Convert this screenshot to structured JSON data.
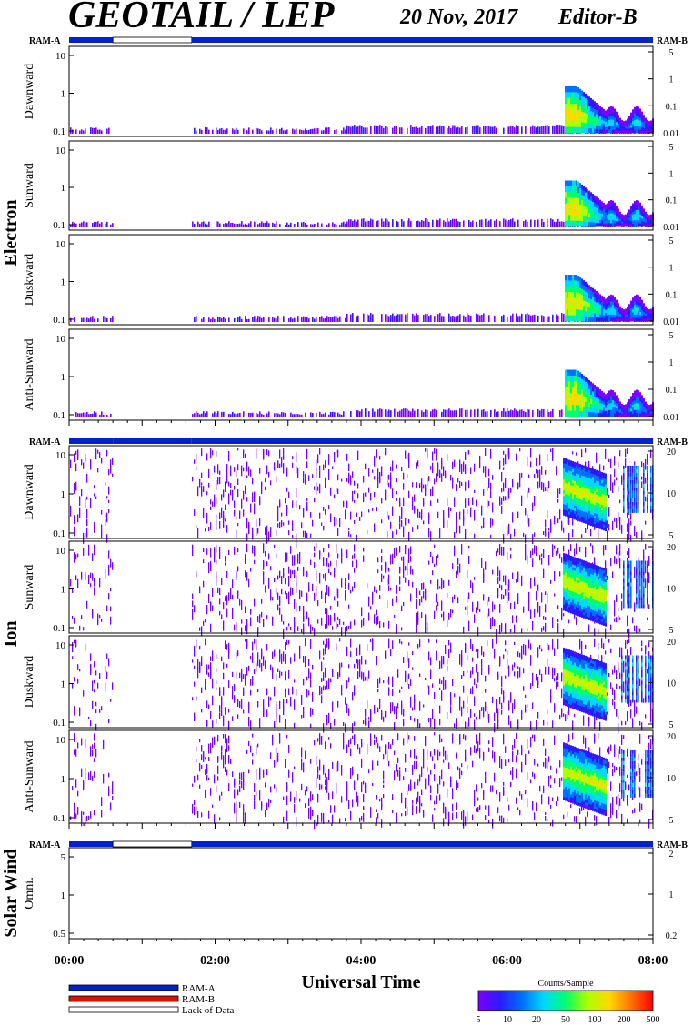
{
  "header": {
    "title": "GEOTAIL / LEP",
    "date": "20 Nov, 2017",
    "editor": "Editor-B"
  },
  "chart_data": {
    "type": "heatmap",
    "xlabel": "Universal Time",
    "x_ticks": [
      "00:00",
      "02:00",
      "04:00",
      "06:00",
      "08:00"
    ],
    "x_range_hours": [
      0,
      8
    ],
    "ram_a_label": "RAM-A",
    "ram_b_label": "RAM-B",
    "ram_bars": {
      "electron": [
        {
          "from": 0.0,
          "to": 0.6,
          "status": "RAM-A"
        },
        {
          "from": 0.6,
          "to": 1.68,
          "status": "Lack of Data"
        },
        {
          "from": 1.68,
          "to": 8.0,
          "status": "RAM-A"
        }
      ],
      "ion": [
        {
          "from": 0.0,
          "to": 0.6,
          "status": "RAM-A"
        },
        {
          "from": 0.6,
          "to": 1.68,
          "status": "RAM-A"
        },
        {
          "from": 1.68,
          "to": 8.0,
          "status": "RAM-A"
        }
      ],
      "solar_wind": [
        {
          "from": 0.0,
          "to": 0.6,
          "status": "RAM-A"
        },
        {
          "from": 0.6,
          "to": 1.68,
          "status": "Lack of Data"
        },
        {
          "from": 1.68,
          "to": 8.0,
          "status": "RAM-A"
        }
      ]
    },
    "groups": [
      {
        "name": "Electron",
        "panels": [
          {
            "label": "Dawnward",
            "left_ticks": [
              "10",
              "1",
              "0.1"
            ],
            "right_ticks": [
              "5",
              "1",
              "0.1",
              "0.01"
            ]
          },
          {
            "label": "Sunward",
            "left_ticks": [
              "10",
              "1",
              "0.1"
            ],
            "right_ticks": [
              "5",
              "1",
              "0.1",
              "0.01"
            ]
          },
          {
            "label": "Duskward",
            "left_ticks": [
              "10",
              "1",
              "0.1"
            ],
            "right_ticks": [
              "5",
              "1",
              "0.1",
              "0.01"
            ]
          },
          {
            "label": "Anti-Sunward",
            "left_ticks": [
              "10",
              "1",
              "0.1"
            ],
            "right_ticks": [
              "5",
              "1",
              "0.1",
              "0.01"
            ]
          }
        ]
      },
      {
        "name": "Ion",
        "panels": [
          {
            "label": "Dawnward",
            "left_ticks": [
              "10",
              "1",
              "0.1"
            ],
            "right_ticks": [
              "20",
              "10",
              "5"
            ]
          },
          {
            "label": "Sunward",
            "left_ticks": [
              "10",
              "1",
              "0.1"
            ],
            "right_ticks": [
              "20",
              "10",
              "5"
            ]
          },
          {
            "label": "Duskward",
            "left_ticks": [
              "10",
              "1",
              "0.1"
            ],
            "right_ticks": [
              "20",
              "10",
              "5"
            ]
          },
          {
            "label": "Anti-Sunward",
            "left_ticks": [
              "10",
              "1",
              "0.1"
            ],
            "right_ticks": [
              "20",
              "10",
              "5"
            ]
          }
        ]
      },
      {
        "name": "Solar Wind",
        "panels": [
          {
            "label": "Omni.",
            "left_ticks": [
              "5",
              "1",
              "0.5"
            ],
            "right_ticks": [
              "2",
              "1",
              "0.2"
            ]
          }
        ]
      }
    ],
    "legend": {
      "items": [
        {
          "label": "RAM-A",
          "color": "#0022cc"
        },
        {
          "label": "RAM-B",
          "color": "#dd1100"
        },
        {
          "label": "Lack of Data",
          "color": "#ffffff"
        }
      ]
    },
    "colorbar": {
      "title": "Counts/Sample",
      "ticks": [
        "5",
        "10",
        "20",
        "50",
        "100",
        "200",
        "500"
      ],
      "colors": [
        "#7b00ff",
        "#2a1bff",
        "#0070ff",
        "#00d8ff",
        "#00ff70",
        "#b0ff00",
        "#ffd800",
        "#ff7000",
        "#ff0000"
      ]
    },
    "electron_features": {
      "background_active_hours": [
        [
          0.0,
          0.6
        ],
        [
          1.68,
          8.0
        ]
      ],
      "burst_start_hours": 6.78,
      "burst_peak_hours": 6.95,
      "burst_decay_end_hours": 7.35,
      "second_activity_hours": [
        7.3,
        8.0
      ]
    },
    "ion_features": {
      "active_hours": [
        [
          0.0,
          0.6
        ],
        [
          1.68,
          8.0
        ]
      ],
      "burst_hours": [
        6.75,
        7.35
      ],
      "late_activity_hours": [
        7.55,
        8.0
      ]
    }
  }
}
